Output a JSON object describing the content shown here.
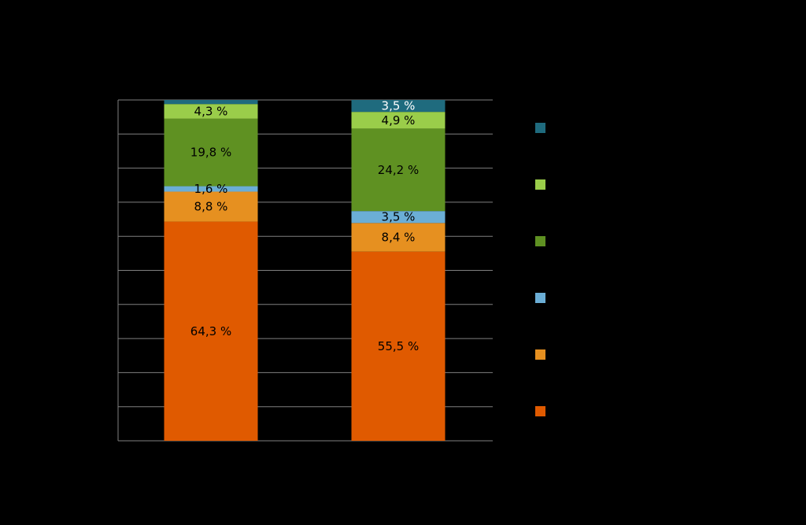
{
  "chart_data": {
    "type": "bar",
    "stacked": true,
    "percent_stacked": true,
    "categories": [
      "",
      ""
    ],
    "ylim": [
      0,
      100
    ],
    "grid": true,
    "legend_position": "right",
    "series": [
      {
        "color": "#E05A00",
        "values": [
          64.3,
          55.5
        ],
        "labels": [
          "64,3 %",
          "55,5 %"
        ]
      },
      {
        "color": "#E69020",
        "values": [
          8.8,
          8.4
        ],
        "labels": [
          "8,8 %",
          "8,4 %"
        ]
      },
      {
        "color": "#6BAED6",
        "values": [
          1.6,
          3.5
        ],
        "labels": [
          "1,6 %",
          "3,5 %"
        ]
      },
      {
        "color": "#5F9122",
        "values": [
          19.8,
          24.2
        ],
        "labels": [
          "19,8 %",
          "24,2 %"
        ]
      },
      {
        "color": "#9ACD4A",
        "values": [
          4.3,
          4.9
        ],
        "labels": [
          "4,3 %",
          "4,9 %"
        ]
      },
      {
        "color": "#1F6B7E",
        "values": [
          1.2,
          3.5
        ],
        "labels": [
          "",
          "3,5 %"
        ]
      }
    ]
  }
}
